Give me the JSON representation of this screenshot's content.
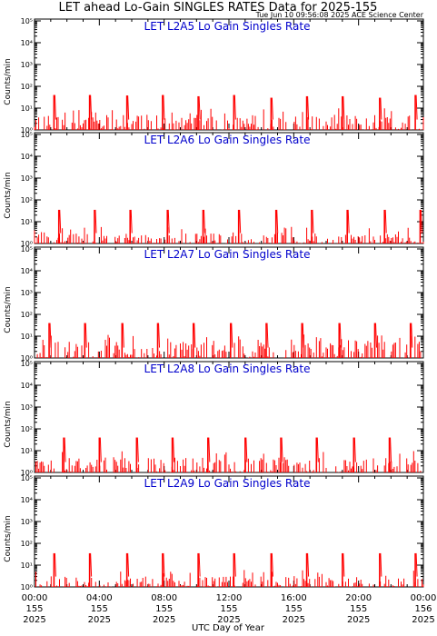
{
  "title": "LET ahead Lo-Gain SINGLES RATES Data for 2025-155",
  "timestamp": "Tue Jun 10 09:56:08 2025 ACE Science Center",
  "xlabel": "UTC Day of Year",
  "colors": {
    "data": "#ff0000",
    "panel_title": "#0000cc",
    "axis": "#000000"
  },
  "chart_data": [
    {
      "type": "line",
      "title": "LET L2A5 Lo Gain Singles Rate",
      "ylabel": "Counts/min",
      "yscale": "log",
      "ylim": [
        1,
        100000
      ],
      "yticks": [
        "10⁰",
        "10¹",
        "10²",
        "10³",
        "10⁴",
        "10⁵"
      ],
      "xlim": [
        0,
        24
      ],
      "baseline_range": [
        1,
        5
      ],
      "spikes": [
        {
          "x": 1.2,
          "y": 40
        },
        {
          "x": 3.4,
          "y": 40
        },
        {
          "x": 5.7,
          "y": 38
        },
        {
          "x": 7.9,
          "y": 40
        },
        {
          "x": 10.1,
          "y": 35
        },
        {
          "x": 12.3,
          "y": 40
        },
        {
          "x": 14.6,
          "y": 30
        },
        {
          "x": 16.8,
          "y": 35
        },
        {
          "x": 19.0,
          "y": 35
        },
        {
          "x": 21.3,
          "y": 30
        },
        {
          "x": 23.5,
          "y": 40
        }
      ]
    },
    {
      "type": "line",
      "title": "LET L2A6 Lo Gain Singles Rate",
      "ylabel": "Counts/min",
      "yscale": "log",
      "ylim": [
        1,
        100000
      ],
      "yticks": [
        "10⁰",
        "10¹",
        "10²",
        "10³",
        "10⁴",
        "10⁵"
      ],
      "xlim": [
        0,
        24
      ],
      "baseline_range": [
        1,
        3
      ],
      "spikes": [
        {
          "x": 1.5,
          "y": 35
        },
        {
          "x": 3.7,
          "y": 35
        },
        {
          "x": 5.9,
          "y": 35
        },
        {
          "x": 8.2,
          "y": 35
        },
        {
          "x": 10.4,
          "y": 35
        },
        {
          "x": 12.6,
          "y": 35
        },
        {
          "x": 14.9,
          "y": 35
        },
        {
          "x": 17.1,
          "y": 35
        },
        {
          "x": 19.3,
          "y": 35
        },
        {
          "x": 21.6,
          "y": 35
        },
        {
          "x": 23.8,
          "y": 35
        }
      ]
    },
    {
      "type": "line",
      "title": "LET L2A7 Lo Gain Singles Rate",
      "ylabel": "Counts/min",
      "yscale": "log",
      "ylim": [
        1,
        100000
      ],
      "yticks": [
        "10⁰",
        "10¹",
        "10²",
        "10³",
        "10⁴",
        "10⁵"
      ],
      "xlim": [
        0,
        24
      ],
      "baseline_range": [
        1,
        6
      ],
      "spikes": [
        {
          "x": 0.9,
          "y": 40
        },
        {
          "x": 3.1,
          "y": 40
        },
        {
          "x": 5.4,
          "y": 40
        },
        {
          "x": 7.6,
          "y": 40
        },
        {
          "x": 9.8,
          "y": 40
        },
        {
          "x": 12.1,
          "y": 40
        },
        {
          "x": 14.3,
          "y": 40
        },
        {
          "x": 16.5,
          "y": 40
        },
        {
          "x": 18.8,
          "y": 40
        },
        {
          "x": 21.0,
          "y": 40
        },
        {
          "x": 23.2,
          "y": 40
        }
      ]
    },
    {
      "type": "line",
      "title": "LET L2A8 Lo Gain Singles Rate",
      "ylabel": "Counts/min",
      "yscale": "log",
      "ylim": [
        1,
        100000
      ],
      "yticks": [
        "10⁰",
        "10¹",
        "10²",
        "10³",
        "10⁴",
        "10⁵"
      ],
      "xlim": [
        0,
        24
      ],
      "baseline_range": [
        1,
        5
      ],
      "spikes": [
        {
          "x": 1.8,
          "y": 40
        },
        {
          "x": 4.0,
          "y": 40
        },
        {
          "x": 6.3,
          "y": 40
        },
        {
          "x": 8.5,
          "y": 40
        },
        {
          "x": 10.7,
          "y": 40
        },
        {
          "x": 13.0,
          "y": 40
        },
        {
          "x": 15.2,
          "y": 40
        },
        {
          "x": 17.4,
          "y": 40
        },
        {
          "x": 19.7,
          "y": 40
        },
        {
          "x": 21.9,
          "y": 40
        }
      ]
    },
    {
      "type": "line",
      "title": "LET L2A9 Lo Gain Singles Rate",
      "ylabel": "Counts/min",
      "yscale": "log",
      "ylim": [
        1,
        100000
      ],
      "yticks": [
        "10⁰",
        "10¹",
        "10²",
        "10³",
        "10⁴",
        "10⁵"
      ],
      "xlim": [
        0,
        24
      ],
      "baseline_range": [
        1,
        3
      ],
      "spikes": [
        {
          "x": 1.2,
          "y": 35
        },
        {
          "x": 3.4,
          "y": 35
        },
        {
          "x": 5.7,
          "y": 35
        },
        {
          "x": 7.9,
          "y": 35
        },
        {
          "x": 10.1,
          "y": 35
        },
        {
          "x": 12.3,
          "y": 35
        },
        {
          "x": 14.6,
          "y": 35
        },
        {
          "x": 16.8,
          "y": 35
        },
        {
          "x": 19.0,
          "y": 35
        },
        {
          "x": 21.3,
          "y": 35
        },
        {
          "x": 23.5,
          "y": 35
        }
      ]
    }
  ],
  "xticks": [
    {
      "x": 0,
      "lines": [
        "00:00",
        "155",
        "2025"
      ]
    },
    {
      "x": 4,
      "lines": [
        "04:00",
        "155",
        "2025"
      ]
    },
    {
      "x": 8,
      "lines": [
        "08:00",
        "155",
        "2025"
      ]
    },
    {
      "x": 12,
      "lines": [
        "12:00",
        "155",
        "2025"
      ]
    },
    {
      "x": 16,
      "lines": [
        "16:00",
        "155",
        "2025"
      ]
    },
    {
      "x": 20,
      "lines": [
        "20:00",
        "155",
        "2025"
      ]
    },
    {
      "x": 24,
      "lines": [
        "00:00",
        "156",
        "2025"
      ]
    }
  ]
}
